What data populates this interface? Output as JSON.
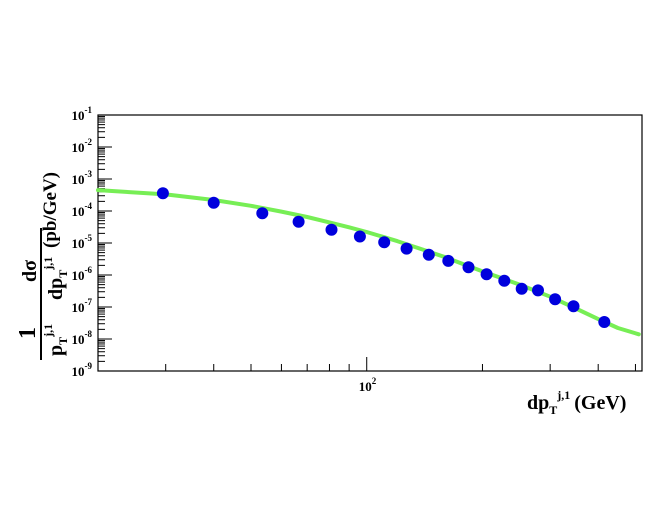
{
  "chart_data": {
    "type": "scatter",
    "title": "",
    "xlabel": {
      "main": "dp",
      "sub": "T",
      "sup": "j,1",
      "unit": "(GeV)"
    },
    "ylabel": {
      "frac1_num": "1",
      "frac1_den_main": "p",
      "frac1_den_sub": "T",
      "frac1_den_sup": "j,1",
      "frac2_num": "dσ",
      "frac2_den_main": "dp",
      "frac2_den_sub": "T",
      "frac2_den_sup": "j,1",
      "unit": "(pb/GeV)"
    },
    "x_scale": "log",
    "y_scale": "log",
    "xlim": [
      20,
      520
    ],
    "ylim": [
      1e-09,
      0.1
    ],
    "x_tick_labels": [
      {
        "base": "10",
        "exp": "2"
      }
    ],
    "y_tick_labels": [
      {
        "base": "10",
        "exp": "-9"
      },
      {
        "base": "10",
        "exp": "-8"
      },
      {
        "base": "10",
        "exp": "-7"
      },
      {
        "base": "10",
        "exp": "-6"
      },
      {
        "base": "10",
        "exp": "-5"
      },
      {
        "base": "10",
        "exp": "-4"
      },
      {
        "base": "10",
        "exp": "-3"
      },
      {
        "base": "10",
        "exp": "-2"
      },
      {
        "base": "10",
        "exp": "-1"
      }
    ],
    "grid": false,
    "series": [
      {
        "type": "scatter",
        "color": "#0000dd",
        "x": [
          29.5,
          40,
          53.5,
          66.5,
          81,
          96,
          111,
          127,
          145,
          163,
          184,
          205,
          228,
          253,
          279,
          309,
          345,
          415
        ],
        "y": [
          0.00036,
          0.00018,
          8.5e-05,
          4.6e-05,
          2.6e-05,
          1.6e-05,
          1.05e-05,
          6.7e-06,
          4.3e-06,
          2.75e-06,
          1.75e-06,
          1.05e-06,
          6.6e-07,
          3.7e-07,
          3.3e-07,
          1.75e-07,
          1.05e-07,
          3.4e-08
        ]
      },
      {
        "type": "line",
        "color": "#77ee55",
        "x": [
          20,
          30,
          40,
          50,
          60,
          70,
          80,
          90,
          100,
          120,
          140,
          160,
          180,
          200,
          250,
          300,
          350,
          400,
          450,
          510
        ],
        "y": [
          0.00045,
          0.00033,
          0.00022,
          0.000145,
          9.6e-05,
          6.5e-05,
          4.4e-05,
          3.1e-05,
          2.2e-05,
          1.15e-05,
          6.2e-06,
          3.6e-06,
          2.1e-06,
          1.3e-06,
          5e-07,
          2.1e-07,
          9e-08,
          4.2e-08,
          2.2e-08,
          1.4e-08
        ]
      }
    ]
  }
}
